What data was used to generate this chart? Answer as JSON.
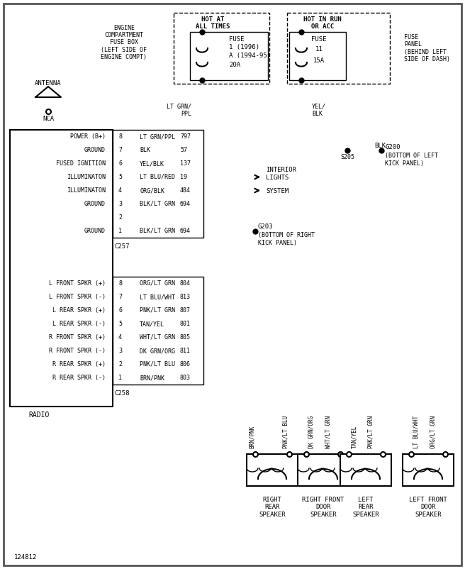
{
  "bg_color": "#ffffff",
  "fig_width": 6.56,
  "fig_height": 8.02,
  "c257_pins": [
    {
      "pin": 8,
      "label": "POWER (B+)",
      "wire": "LT GRN/PPL",
      "num": "797",
      "color": "#9966bb"
    },
    {
      "pin": 7,
      "label": "GROUND",
      "wire": "BLK",
      "num": "57",
      "color": "#111111"
    },
    {
      "pin": 6,
      "label": "FUSED IGNITION",
      "wire": "YEL/BLK",
      "num": "137",
      "color": "#cccc00"
    },
    {
      "pin": 5,
      "label": "ILLUMINATON",
      "wire": "LT BLU/RED",
      "num": "19",
      "color": "#6688ff"
    },
    {
      "pin": 4,
      "label": "ILLUMINATON",
      "wire": "ORG/BLK",
      "num": "484",
      "color": "#dd8800"
    },
    {
      "pin": 3,
      "label": "GROUND",
      "wire": "BLK/LT GRN",
      "num": "694",
      "color": "#228833"
    },
    {
      "pin": 2,
      "label": "",
      "wire": "",
      "num": "",
      "color": "#000000"
    },
    {
      "pin": 1,
      "label": "GROUND",
      "wire": "BLK/LT GRN",
      "num": "694",
      "color": "#228833"
    }
  ],
  "c258_pins": [
    {
      "pin": 8,
      "label": "L FRONT SPKR (+)",
      "wire": "ORG/LT GRN",
      "num": "804",
      "color": "#88aa00"
    },
    {
      "pin": 7,
      "label": "L FRONT SPKR (-)",
      "wire": "LT BLU/WHT",
      "num": "813",
      "color": "#44bbdd"
    },
    {
      "pin": 6,
      "label": "L REAR SPKR (+)",
      "wire": "PNK/LT GRN",
      "num": "807",
      "color": "#dd88aa"
    },
    {
      "pin": 5,
      "label": "L REAR SPKR (-)",
      "wire": "TAN/YEL",
      "num": "801",
      "color": "#ccaa44"
    },
    {
      "pin": 4,
      "label": "R FRONT SPKR (+)",
      "wire": "WHT/LT GRN",
      "num": "805",
      "color": "#88cc88"
    },
    {
      "pin": 3,
      "label": "R FRONT SPKR (-)",
      "wire": "DK GRN/ORG",
      "num": "811",
      "color": "#336633"
    },
    {
      "pin": 2,
      "label": "R REAR SPKR (+)",
      "wire": "PNK/LT BLU",
      "num": "806",
      "color": "#bb66bb"
    },
    {
      "pin": 1,
      "label": "R REAR SPKR (-)",
      "wire": "BRN/PNK",
      "num": "803",
      "color": "#884422"
    }
  ]
}
